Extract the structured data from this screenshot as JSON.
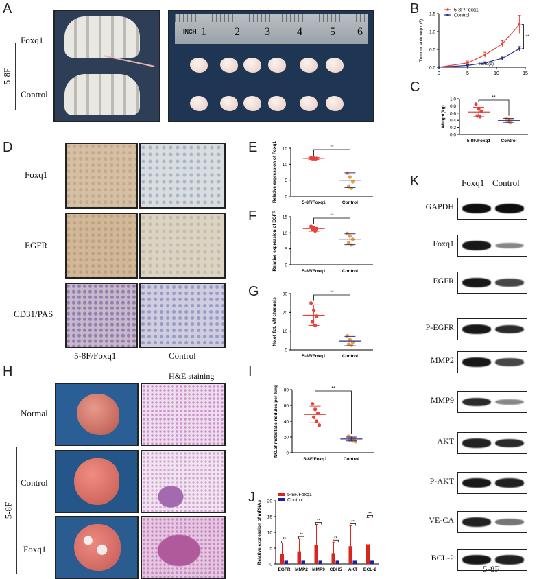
{
  "panels": {
    "A": {
      "letter": "A",
      "row_labels": [
        "Foxq1",
        "Control"
      ],
      "group_label": "5-8F",
      "ruler": {
        "unit": "INCH",
        "numbers": [
          "1",
          "2",
          "3",
          "4",
          "5",
          "6"
        ]
      }
    },
    "B": {
      "letter": "B"
    },
    "C": {
      "letter": "C"
    },
    "D": {
      "letter": "D",
      "row_labels": [
        "Foxq1",
        "EGFR",
        "CD31/PAS"
      ],
      "col_labels": [
        "5-8F/Foxq1",
        "Control"
      ]
    },
    "E": {
      "letter": "E"
    },
    "F": {
      "letter": "F"
    },
    "G": {
      "letter": "G"
    },
    "H": {
      "letter": "H",
      "header": "H&E staining",
      "row_labels": [
        "Normal",
        "Control",
        "Foxq1"
      ],
      "group_label": "5-8F"
    },
    "I": {
      "letter": "I"
    },
    "J": {
      "letter": "J"
    },
    "K": {
      "letter": "K",
      "col_labels": [
        "Foxq1",
        "Control"
      ],
      "row_labels": [
        "GAPDH",
        "Foxq1",
        "EGFR",
        "P-EGFR",
        "MMP2",
        "MMP9",
        "AKT",
        "P-AKT",
        "VE-CA",
        "BCL-2"
      ],
      "band_intensity_foxq1": [
        1.0,
        0.95,
        0.95,
        0.95,
        0.95,
        0.85,
        0.9,
        0.95,
        0.9,
        0.95
      ],
      "band_intensity_control": [
        1.0,
        0.35,
        0.7,
        0.85,
        0.7,
        0.35,
        0.85,
        0.9,
        0.45,
        0.9
      ],
      "footer": "5-8F"
    }
  },
  "chart_data": [
    {
      "id": "B",
      "type": "line",
      "ylabel": "Tumour Volume(cm3)",
      "xlabel": "Time(d)",
      "xlim": [
        0,
        15
      ],
      "ylim": [
        0,
        1.5
      ],
      "xticks": [
        "0",
        "5",
        "10",
        "15"
      ],
      "yticks": [
        "0.0",
        "0.5",
        "1.0",
        "1.5"
      ],
      "significance": "**",
      "legend_position": "top-left",
      "series": [
        {
          "name": "5-8F/Foxq1",
          "color": "#e8423c",
          "x": [
            0,
            5,
            8,
            11,
            14
          ],
          "y": [
            0.0,
            0.12,
            0.35,
            0.65,
            1.2
          ],
          "err": [
            0.0,
            0.05,
            0.07,
            0.09,
            0.25
          ]
        },
        {
          "name": "Control",
          "color": "#2b2f8f",
          "x": [
            0,
            5,
            8,
            11,
            14
          ],
          "y": [
            0.0,
            0.05,
            0.12,
            0.25,
            0.52
          ],
          "err": [
            0.0,
            0.02,
            0.03,
            0.04,
            0.06
          ]
        }
      ]
    },
    {
      "id": "C",
      "type": "scatter",
      "ylabel": "Weight(kg)",
      "ylim": [
        0,
        1.0
      ],
      "yticks": [
        "0.0",
        "0.2",
        "0.4",
        "0.6",
        "0.8",
        "1.0"
      ],
      "categories": [
        "5-8F/Foxq1",
        "Control"
      ],
      "significance": "**",
      "groups": [
        {
          "category": "5-8F/Foxq1",
          "color": "#e8423c",
          "mean": 0.63,
          "sd": 0.13,
          "points": [
            0.85,
            0.72,
            0.65,
            0.52,
            0.5
          ]
        },
        {
          "category": "Control",
          "color": "#2b2f8f",
          "pointColor": "#f0a23c",
          "mean": 0.39,
          "sd": 0.06,
          "points": [
            0.45,
            0.42,
            0.4,
            0.35,
            0.33
          ]
        }
      ]
    },
    {
      "id": "E",
      "type": "scatter",
      "ylabel": "Relative expression of Foxq1",
      "ylim": [
        0,
        15
      ],
      "yticks": [
        "0",
        "5",
        "10",
        "15"
      ],
      "categories": [
        "5-8F/Foxq1",
        "Control"
      ],
      "significance": "**",
      "groups": [
        {
          "category": "5-8F/Foxq1",
          "color": "#e8423c",
          "mean": 11.8,
          "sd": 0.3,
          "points": [
            12.0,
            11.9,
            11.8,
            11.7,
            11.6
          ]
        },
        {
          "category": "Control",
          "color": "#2b2f8f",
          "pointColor": "#f0a23c",
          "mean": 5.0,
          "sd": 2.3,
          "points": [
            7.2,
            6.0,
            4.5,
            3.0,
            2.5
          ]
        }
      ]
    },
    {
      "id": "F",
      "type": "scatter",
      "ylabel": "Relative expression of EGFR",
      "ylim": [
        0,
        15
      ],
      "yticks": [
        "0",
        "5",
        "10",
        "15"
      ],
      "categories": [
        "5-8F/Foxq1",
        "Control"
      ],
      "significance": "**",
      "groups": [
        {
          "category": "5-8F/Foxq1",
          "color": "#e8423c",
          "mean": 11.3,
          "sd": 0.8,
          "points": [
            12.0,
            11.6,
            11.3,
            11.0,
            10.6
          ]
        },
        {
          "category": "Control",
          "color": "#2b2f8f",
          "pointColor": "#f0a23c",
          "mean": 8.0,
          "sd": 1.7,
          "points": [
            9.8,
            9.0,
            8.0,
            6.9,
            6.2
          ]
        }
      ]
    },
    {
      "id": "G",
      "type": "scatter",
      "ylabel": "No.of Tot. VM channels",
      "ylim": [
        0,
        30
      ],
      "yticks": [
        "0",
        "10",
        "20",
        "30"
      ],
      "categories": [
        "5-8F/Foxq1",
        "Control"
      ],
      "significance": "**",
      "groups": [
        {
          "category": "5-8F/Foxq1",
          "color": "#e8423c",
          "mean": 18.5,
          "sd": 5.5,
          "points": [
            25.0,
            21.0,
            18.0,
            15.0,
            13.0
          ]
        },
        {
          "category": "Control",
          "color": "#2b2f8f",
          "pointColor": "#f0a23c",
          "mean": 4.7,
          "sd": 2.5,
          "points": [
            7.5,
            5.5,
            4.0,
            3.0,
            2.5
          ]
        }
      ]
    },
    {
      "id": "I",
      "type": "scatter",
      "ylabel": "NO.of metastatic nodules per lung",
      "ylim": [
        0,
        80
      ],
      "yticks": [
        "0",
        "20",
        "40",
        "60",
        "80"
      ],
      "categories": [
        "5-8F/Foxq1",
        "Control"
      ],
      "significance": "**",
      "groups": [
        {
          "category": "5-8F/Foxq1",
          "color": "#e8423c",
          "mean": 48.5,
          "sd": 10.5,
          "points": [
            62,
            55,
            50,
            45,
            40,
            35
          ]
        },
        {
          "category": "Control",
          "color": "#2b2f8f",
          "pointColor": "#f0a23c",
          "mean": 17.5,
          "sd": 2.5,
          "points": [
            21,
            19,
            18,
            16,
            15,
            14
          ]
        }
      ]
    },
    {
      "id": "J",
      "type": "bar",
      "ylabel": "Relative expression of mRNAs",
      "ylim": [
        0,
        20
      ],
      "yticks": [
        "0",
        "5",
        "10",
        "15",
        "20"
      ],
      "categories": [
        "EGFR",
        "MMP2",
        "MMP9",
        "CDH5",
        "AKT",
        "BCL-2"
      ],
      "significance": [
        "**",
        "**",
        "**",
        "**",
        "**",
        "**"
      ],
      "legend_position": "top-left",
      "series": [
        {
          "name": "5-8F/Foxq1",
          "color": "#d8261f",
          "values": [
            3.1,
            4.0,
            6.0,
            3.4,
            5.6,
            6.2
          ],
          "err": [
            3.5,
            4.0,
            6.5,
            3.5,
            6.5,
            8.5
          ]
        },
        {
          "name": "Control",
          "color": "#1f1fa0",
          "values": [
            1.0,
            1.0,
            1.0,
            1.0,
            1.0,
            1.0
          ],
          "err": [
            0.0,
            0.0,
            0.0,
            0.0,
            0.0,
            0.0
          ]
        }
      ]
    }
  ]
}
